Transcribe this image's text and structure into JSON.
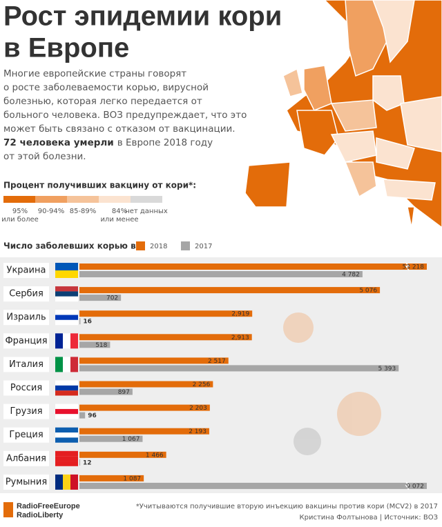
{
  "title": [
    "Рост эпидемии кори",
    "в Европе"
  ],
  "description": [
    "Многие европейские страны говорят",
    "о росте заболеваемости корью, вирусной",
    "болезнью, которая легко передается от",
    "больного человека. ВОЗ предупреждает, что это",
    "может быть связано с отказом от вакцинации."
  ],
  "death_note": {
    "bold": "72 человека умерли",
    "rest": "в Европе 2018 году",
    "last": "от этой болезни."
  },
  "vaccine_legend": {
    "title": "Процент получивших вакцину от кори*:",
    "items": [
      {
        "label": [
          "95%",
          "или более"
        ],
        "color": "#e36c0a"
      },
      {
        "label": [
          "90-94%"
        ],
        "color": "#f0a060"
      },
      {
        "label": [
          "85-89%"
        ],
        "color": "#f5c39a"
      },
      {
        "label": [
          "84%",
          "или менее"
        ],
        "color": "#fbe3d0"
      },
      {
        "label": [
          "нет данных"
        ],
        "color": "#d9d9d9"
      }
    ]
  },
  "chart_data": {
    "type": "bar",
    "orientation": "horizontal",
    "legend_title": "Число заболевших корью в:",
    "categories": [
      "Украина",
      "Сербия",
      "Израиль",
      "Франция",
      "Италия",
      "Россия",
      "Грузия",
      "Греция",
      "Албания",
      "Румыния"
    ],
    "series": [
      {
        "name": "2018",
        "color": "#e36c0a",
        "values": [
          53218,
          5076,
          2919,
          2913,
          2517,
          2256,
          2203,
          2193,
          1466,
          1087
        ],
        "value_labels": [
          "53 218",
          "5 076",
          "2,919",
          "2,913",
          "2 517",
          "2 256",
          "2 203",
          "2 193",
          "1 466",
          "1 087"
        ]
      },
      {
        "name": "2017",
        "color": "#a6a6a6",
        "values": [
          4782,
          702,
          16,
          518,
          5393,
          897,
          96,
          1067,
          12,
          9072
        ],
        "value_labels": [
          "4 782",
          "702",
          "16",
          "518",
          "5 393",
          "897",
          "96",
          "1 067",
          "12",
          "9 072"
        ]
      }
    ],
    "xlim": [
      0,
      5600
    ]
  },
  "footer": {
    "logo": [
      "RadioFreeEurope",
      "RadioLiberty"
    ],
    "note": "*Учитываются получившие вторую инъекцию вакцины против кори (MCV2) в 2017",
    "credit": "Кристина Фолтынова | Источник: ВОЗ"
  }
}
